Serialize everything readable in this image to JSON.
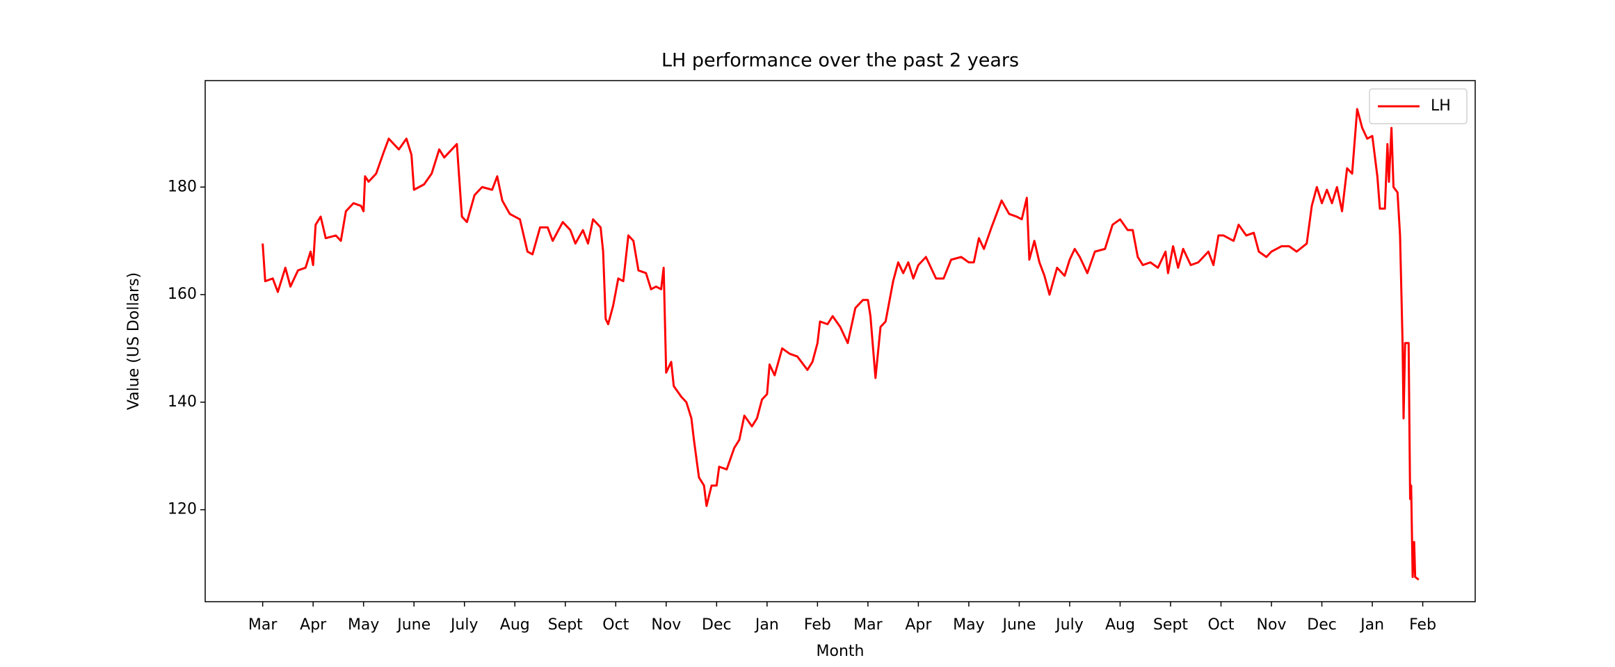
{
  "chart_data": {
    "type": "line",
    "title": "LH performance over the past 2 years",
    "x_label": "Month",
    "y_label": "Value (US Dollars)",
    "xlim": [
      -1.14,
      24.04
    ],
    "xticks": [
      {
        "value": 0,
        "label": "Mar"
      },
      {
        "value": 1,
        "label": "Apr"
      },
      {
        "value": 2,
        "label": "May"
      },
      {
        "value": 3,
        "label": "June"
      },
      {
        "value": 4,
        "label": "July"
      },
      {
        "value": 5,
        "label": "Aug"
      },
      {
        "value": 6,
        "label": "Sept"
      },
      {
        "value": 7,
        "label": "Oct"
      },
      {
        "value": 8,
        "label": "Nov"
      },
      {
        "value": 9,
        "label": "Dec"
      },
      {
        "value": 10,
        "label": "Jan"
      },
      {
        "value": 11,
        "label": "Feb"
      },
      {
        "value": 12,
        "label": "Mar"
      },
      {
        "value": 13,
        "label": "Apr"
      },
      {
        "value": 14,
        "label": "May"
      },
      {
        "value": 15,
        "label": "June"
      },
      {
        "value": 16,
        "label": "July"
      },
      {
        "value": 17,
        "label": "Aug"
      },
      {
        "value": 18,
        "label": "Sept"
      },
      {
        "value": 19,
        "label": "Oct"
      },
      {
        "value": 20,
        "label": "Nov"
      },
      {
        "value": 21,
        "label": "Dec"
      },
      {
        "value": 22,
        "label": "Jan"
      },
      {
        "value": 23,
        "label": "Feb"
      }
    ],
    "ylim": [
      102.9,
      199.8
    ],
    "yticks": [
      120,
      140,
      160,
      180
    ],
    "legend": "upper right",
    "x": [
      0,
      0.05,
      0.2,
      0.3,
      0.45,
      0.55,
      0.7,
      0.85,
      0.95,
      1.0,
      1.05,
      1.15,
      1.25,
      1.45,
      1.55,
      1.65,
      1.8,
      1.95,
      2.0,
      2.03,
      2.1,
      2.25,
      2.4,
      2.5,
      2.7,
      2.85,
      2.95,
      3.0,
      3.2,
      3.35,
      3.5,
      3.6,
      3.8,
      3.85,
      3.95,
      4.05,
      4.2,
      4.35,
      4.55,
      4.65,
      4.75,
      4.9,
      5.1,
      5.25,
      5.35,
      5.5,
      5.65,
      5.75,
      5.95,
      6.1,
      6.2,
      6.35,
      6.45,
      6.55,
      6.7,
      6.75,
      6.8,
      6.85,
      6.95,
      7.05,
      7.15,
      7.25,
      7.35,
      7.45,
      7.6,
      7.7,
      7.8,
      7.9,
      7.95,
      8.0,
      8.1,
      8.15,
      8.3,
      8.4,
      8.5,
      8.55,
      8.65,
      8.75,
      8.8,
      8.9,
      9.0,
      9.05,
      9.2,
      9.35,
      9.45,
      9.55,
      9.7,
      9.8,
      9.9,
      10.0,
      10.05,
      10.15,
      10.3,
      10.45,
      10.6,
      10.8,
      10.9,
      11.0,
      11.05,
      11.2,
      11.3,
      11.45,
      11.6,
      11.75,
      11.9,
      12.0,
      12.05,
      12.15,
      12.25,
      12.35,
      12.5,
      12.6,
      12.7,
      12.8,
      12.9,
      13.0,
      13.15,
      13.35,
      13.5,
      13.65,
      13.85,
      14.0,
      14.1,
      14.2,
      14.3,
      14.45,
      14.65,
      14.8,
      14.95,
      15.05,
      15.15,
      15.2,
      15.3,
      15.4,
      15.5,
      15.6,
      15.75,
      15.9,
      16.0,
      16.1,
      16.2,
      16.35,
      16.5,
      16.7,
      16.85,
      17.0,
      17.15,
      17.25,
      17.35,
      17.45,
      17.6,
      17.75,
      17.9,
      17.95,
      18.05,
      18.15,
      18.25,
      18.4,
      18.55,
      18.75,
      18.85,
      18.95,
      19.05,
      19.25,
      19.35,
      19.5,
      19.65,
      19.75,
      19.9,
      20.0,
      20.2,
      20.35,
      20.5,
      20.7,
      20.8,
      20.9,
      21.0,
      21.1,
      21.2,
      21.3,
      21.4,
      21.5,
      21.6,
      21.7,
      21.8,
      21.9,
      22.0,
      22.1,
      22.15,
      22.25,
      22.3,
      22.33,
      22.38,
      22.42,
      22.5,
      22.55,
      22.6,
      22.62,
      22.65,
      22.72,
      22.75,
      22.77,
      22.8,
      22.83,
      22.85,
      22.92
    ],
    "series": [
      {
        "name": "LH",
        "color": "#ff0000",
        "values": [
          169.5,
          162.5,
          163,
          160.5,
          165,
          161.5,
          164.5,
          165,
          168,
          165.5,
          173,
          174.5,
          170.5,
          171,
          170,
          175.5,
          177,
          176.5,
          175.5,
          182,
          181,
          182.5,
          186.5,
          189,
          187,
          189,
          186,
          179.5,
          180.5,
          182.5,
          187,
          185.5,
          187.5,
          188,
          174.5,
          173.5,
          178.5,
          180,
          179.5,
          182,
          177.5,
          175,
          174,
          168,
          167.5,
          172.5,
          172.5,
          170,
          173.5,
          172,
          169.5,
          172,
          169.5,
          174,
          172.5,
          168,
          155.5,
          154.5,
          158,
          163,
          162.5,
          171,
          170,
          164.5,
          164,
          161,
          161.5,
          161,
          165,
          145.5,
          147.5,
          143,
          141,
          140,
          137,
          133,
          126,
          124.5,
          120.7,
          124.5,
          124.5,
          128,
          127.5,
          131.5,
          133,
          137.5,
          135.5,
          137,
          140.5,
          141.5,
          147,
          145,
          150,
          149,
          148.5,
          146,
          147.5,
          151,
          155,
          154.5,
          156,
          154,
          151,
          157.5,
          159,
          159,
          156,
          144.5,
          154,
          155,
          162.5,
          166,
          164,
          166,
          163,
          165.5,
          167,
          163,
          163,
          166.5,
          167,
          166,
          166,
          170.5,
          168.5,
          172.5,
          177.5,
          175,
          174.5,
          174,
          178,
          166.5,
          170,
          166,
          163.5,
          160,
          165,
          163.5,
          166.5,
          168.5,
          167,
          164,
          168,
          168.5,
          173,
          174,
          172,
          172,
          167,
          165.5,
          166,
          165,
          168,
          164,
          169,
          165,
          168.5,
          165.5,
          166,
          168,
          165.5,
          171,
          171,
          170,
          173,
          171,
          171.5,
          168,
          167,
          168,
          169,
          169,
          168,
          169.5,
          176.5,
          180,
          177,
          179.5,
          177,
          180,
          175.5,
          183.5,
          182.5,
          194.5,
          191,
          189,
          189.5,
          182,
          176,
          176,
          188,
          181,
          191,
          180,
          179,
          171,
          151,
          137,
          151,
          151,
          122,
          124.5,
          107.5,
          114,
          107.5,
          107
        ]
      }
    ]
  }
}
